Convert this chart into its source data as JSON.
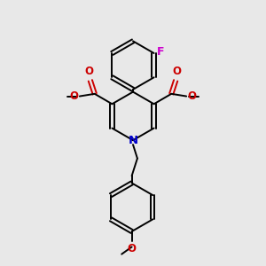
{
  "bg_color": "#e8e8e8",
  "bond_color": "#000000",
  "n_color": "#0000cc",
  "o_color": "#cc0000",
  "f_color": "#cc00cc",
  "line_width": 1.4,
  "font_size": 8.5,
  "xlim": [
    0,
    10
  ],
  "ylim": [
    0,
    11
  ]
}
